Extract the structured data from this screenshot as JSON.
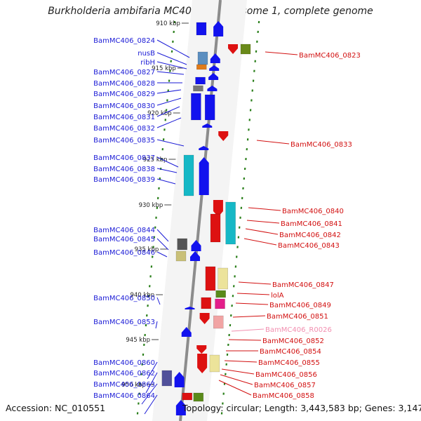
{
  "title": "Burkholderia ambifaria MC40-6 chromosome 1, complete genome",
  "footer": {
    "accession": "Accession: NC_010551",
    "summary": "Topology: circular; Length: 3,443,583 bp; Genes: 3,147"
  },
  "colors": {
    "forward_label": "#1b1bd6",
    "reverse_label": "#d21010",
    "rna_label": "#f28fb0",
    "backbone": "#8c8c8c",
    "tick": "#2a7f1a"
  },
  "ticks": [
    "910 kbp",
    "915 kbp",
    "920 kbp",
    "925 kbp",
    "930 kbp",
    "935 kbp",
    "940 kbp",
    "945 kbp",
    "950 kbp"
  ],
  "forward_genes": [
    "BamMC406_0824",
    "nusB",
    "ribH",
    "BamMC406_0827",
    "BamMC406_0828",
    "BamMC406_0829",
    "BamMC406_0830",
    "BamMC406_0831",
    "BamMC406_0832",
    "BamMC406_0835",
    "BamMC406_0837",
    "BamMC406_0838",
    "BamMC406_0839",
    "BamMC406_0844",
    "BamMC406_0845",
    "BamMC406_0846",
    "BamMC406_0850",
    "BamMC406_0853",
    "BamMC406_0860",
    "BamMC406_0862",
    "BamMC406_0863",
    "BamMC406_0864"
  ],
  "reverse_genes": [
    "BamMC406_0823",
    "BamMC406_0833",
    "BamMC406_0840",
    "BamMC406_0841",
    "BamMC406_0842",
    "BamMC406_0843",
    "BamMC406_0847",
    "lolA",
    "BamMC406_0849",
    "BamMC406_0851",
    "BamMC406_R0026",
    "BamMC406_0852",
    "BamMC406_0854",
    "BamMC406_0855",
    "BamMC406_0856",
    "BamMC406_0857",
    "BamMC406_0858"
  ]
}
